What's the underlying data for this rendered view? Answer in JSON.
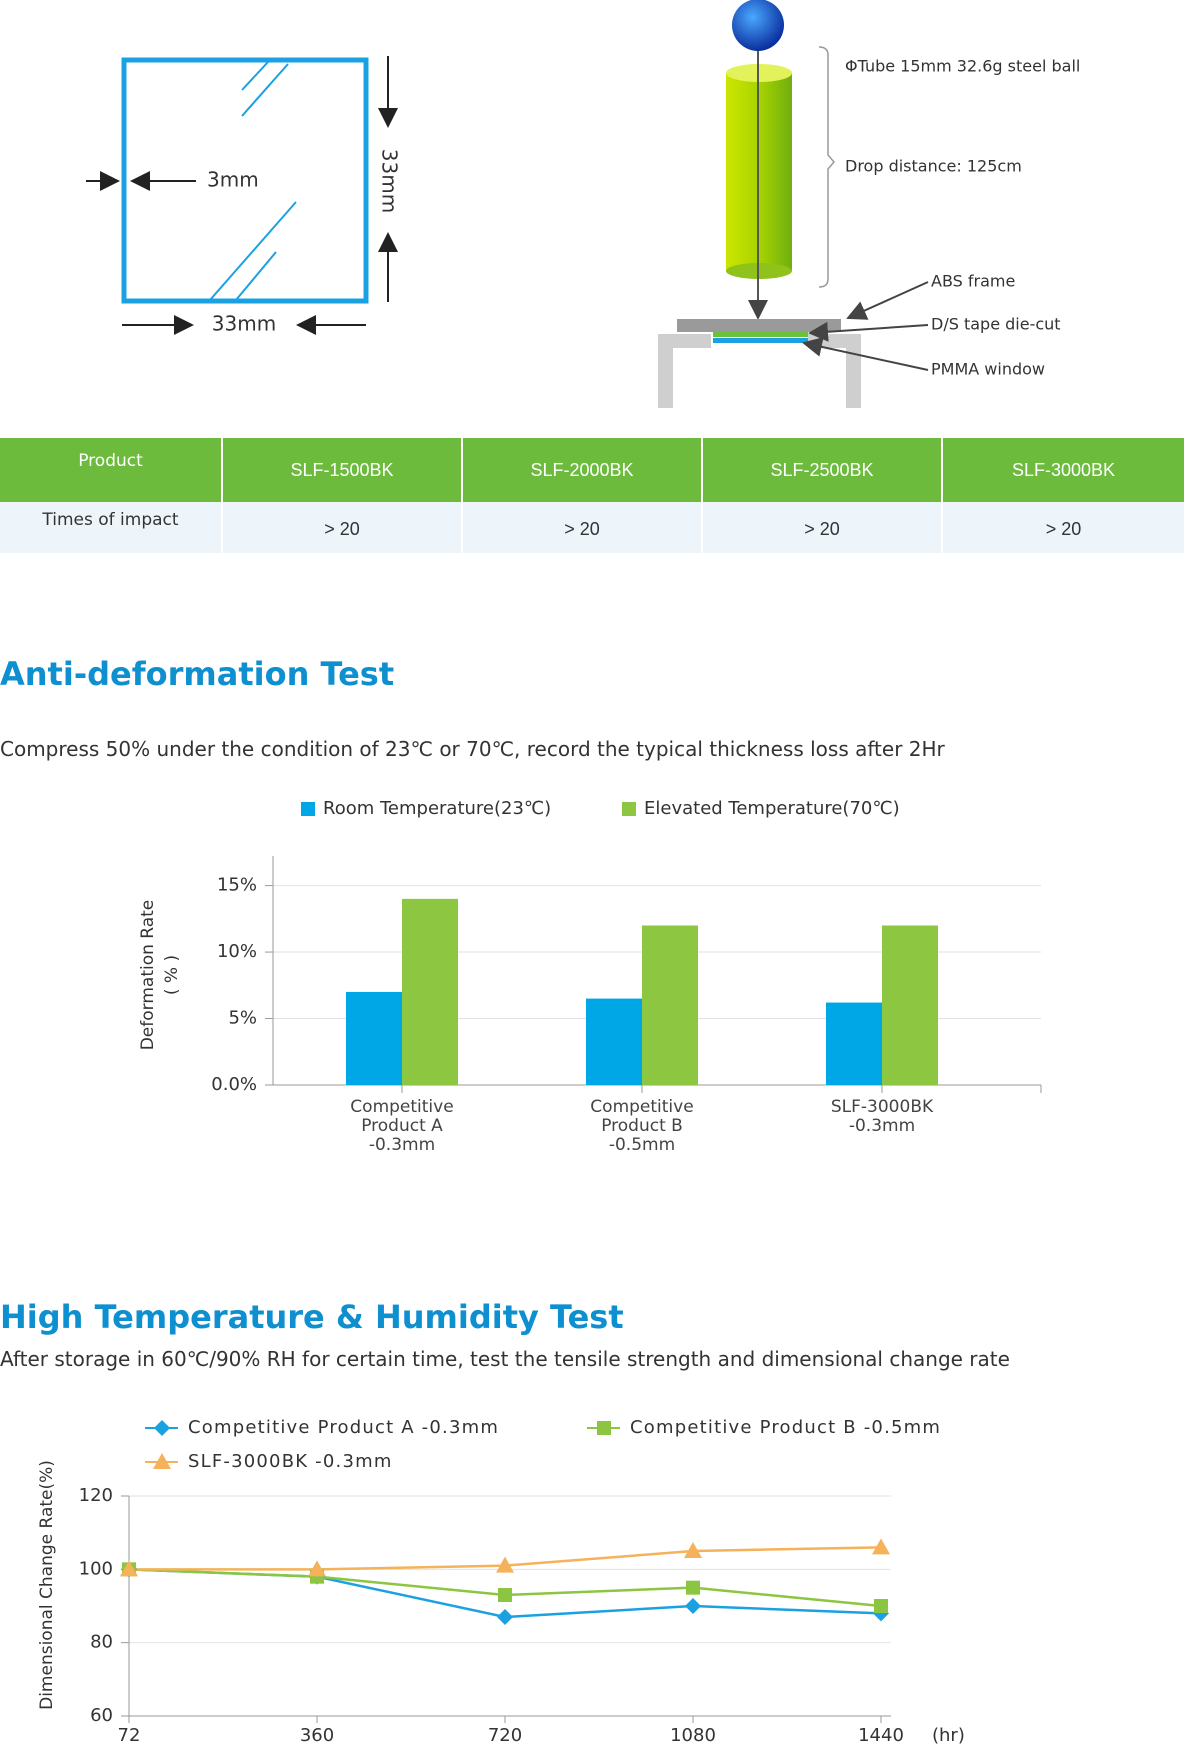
{
  "diagram": {
    "sample": {
      "edge": "3mm",
      "width": "33mm",
      "height": "33mm"
    },
    "labels": [
      "ΦTube 15mm 32.6g steel ball",
      "Drop distance: 125cm",
      "ABS frame",
      "D/S tape die-cut",
      "PMMA window"
    ]
  },
  "table": {
    "header": [
      "Product",
      "SLF-1500BK",
      "SLF-2000BK",
      "SLF-2500BK",
      "SLF-3000BK"
    ],
    "rows": [
      [
        "Times of impact",
        "> 20",
        "> 20",
        "> 20",
        "> 20"
      ]
    ]
  },
  "sections": [
    {
      "title": "Anti-deformation Test",
      "description": "Compress 50% under the condition of 23℃ or 70℃, record the typical thickness loss after 2Hr"
    },
    {
      "title": "High Temperature & Humidity Test",
      "description": "After storage in 60℃/90% RH for certain time, test the tensile strength and dimensional change rate"
    }
  ],
  "chart_data": [
    {
      "type": "bar",
      "categories": [
        "Competitive Product A -0.3mm",
        "Competitive Product B -0.5mm",
        "SLF-3000BK -0.3mm"
      ],
      "series": [
        {
          "name": "Room Temperature(23℃)",
          "color": "#00a7e6",
          "values": [
            7,
            6.5,
            6.2
          ]
        },
        {
          "name": "Elevated Temperature(70℃)",
          "color": "#8dc641",
          "values": [
            14,
            12,
            12
          ]
        }
      ],
      "y_label": "Deformation Rate",
      "y_label_note": "( % )",
      "ylim": [
        0,
        17
      ],
      "yticks": [
        {
          "value": 0,
          "label": "0.0%"
        },
        {
          "value": 5,
          "label": "5%"
        },
        {
          "value": 10,
          "label": "10%"
        },
        {
          "value": 15,
          "label": "15%"
        }
      ],
      "grid": true
    },
    {
      "type": "line",
      "categories": [
        "72",
        "360",
        "720",
        "1080",
        "1440"
      ],
      "x_label": "(hr)",
      "y_label": "Dimensional Change Rate(%)",
      "series": [
        {
          "name": "Competitive Product A -0.3mm",
          "color": "#1ba1e2",
          "marker": "diamond",
          "values": [
            100,
            98,
            87,
            90,
            88
          ]
        },
        {
          "name": "Competitive Product B -0.5mm",
          "color": "#8cc540",
          "marker": "square",
          "values": [
            100,
            98,
            93,
            95,
            90
          ]
        },
        {
          "name": "SLF-3000BK  -0.3mm",
          "color": "#f5b25a",
          "marker": "triangle",
          "values": [
            100,
            100,
            101,
            105,
            106
          ]
        }
      ],
      "ylim": [
        60,
        120
      ],
      "yticks": [
        60,
        80,
        100,
        120
      ],
      "grid": true
    }
  ]
}
